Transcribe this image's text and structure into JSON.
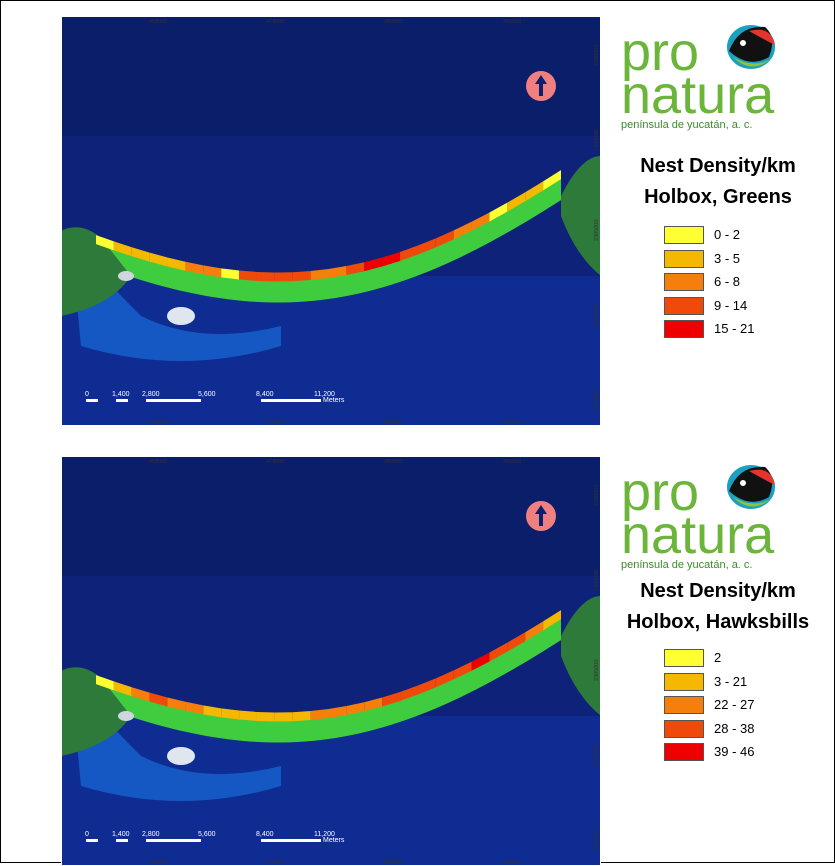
{
  "maps": [
    {
      "id": "greens",
      "legend_title_line1": "Nest Density/km",
      "legend_title_line2": "Holbox, Greens",
      "legend": [
        {
          "label": "0 - 2",
          "color": "#ffff33"
        },
        {
          "label": "3 - 5",
          "color": "#f5b800"
        },
        {
          "label": "6 - 8",
          "color": "#f57f0a"
        },
        {
          "label": "9 - 14",
          "color": "#f04a0a"
        },
        {
          "label": "15 - 21",
          "color": "#ee0000"
        }
      ],
      "segment_classes": [
        0,
        1,
        1,
        1,
        1,
        2,
        2,
        0,
        3,
        3,
        3,
        3,
        2,
        2,
        3,
        4,
        4,
        3,
        3,
        3,
        2,
        2,
        0,
        1,
        1,
        0
      ],
      "x_ticks": [
        "468000",
        "474000",
        "480000",
        "486000"
      ],
      "y_ticks": [
        "2396000",
        "2390000",
        "2385000",
        "2380000",
        "2376000"
      ]
    },
    {
      "id": "hawksbills",
      "legend_title_line1": "Nest Density/km",
      "legend_title_line2": "Holbox, Hawksbills",
      "legend": [
        {
          "label": "2",
          "color": "#ffff33"
        },
        {
          "label": "3 - 21",
          "color": "#f5b800"
        },
        {
          "label": "22 - 27",
          "color": "#f57f0a"
        },
        {
          "label": "28 - 38",
          "color": "#f04a0a"
        },
        {
          "label": "39 - 46",
          "color": "#ee0000"
        }
      ],
      "segment_classes": [
        0,
        1,
        2,
        3,
        2,
        2,
        1,
        1,
        1,
        1,
        1,
        1,
        2,
        2,
        2,
        2,
        3,
        3,
        3,
        3,
        3,
        4,
        3,
        3,
        2,
        1
      ],
      "x_ticks": [
        "468000",
        "474000",
        "480000",
        "486000"
      ],
      "y_ticks": [
        "2396000",
        "2390000",
        "2385000",
        "2380000",
        "2376000"
      ]
    }
  ],
  "scale": {
    "labels": [
      "0",
      "1,400",
      "2,800",
      "5,600",
      "8,400",
      "11,200"
    ],
    "unit": "Meters"
  },
  "logo": {
    "line1": "pro",
    "line2": "natura",
    "tagline": "península de yucatán, a. c."
  }
}
